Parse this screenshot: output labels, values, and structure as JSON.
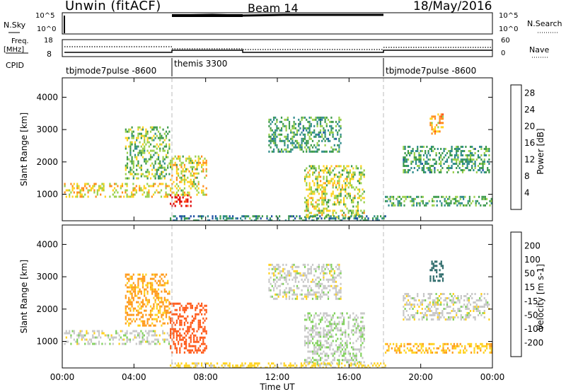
{
  "header": {
    "station": "Unwin (fitACF)",
    "beam": "Beam 14",
    "date": "18/May/2016"
  },
  "strip_labels": {
    "nsky": "N.Sky",
    "nsky_ticks": [
      "10^5",
      "10^0"
    ],
    "nsearch": "N.Search",
    "nsearch_ticks": [
      "10^5",
      "10^0"
    ],
    "freq_line1": "Freq.",
    "freq_line2": "[MHz]",
    "freq_ticks": [
      "18",
      "8"
    ],
    "nave_ticks": [
      "60",
      "0"
    ],
    "nave": "Nave",
    "cpid": "CPID"
  },
  "cpid_segments": [
    {
      "label": "tbjmode7pulse -8600",
      "start": 0,
      "end": 6
    },
    {
      "label": "themis 3300",
      "start": 6,
      "end": 18
    },
    {
      "label": "tbjmode7pulse -8600",
      "start": 18,
      "end": 24
    }
  ],
  "colors": {
    "power_scale": [
      "#1a1aff",
      "#1f4fa3",
      "#2e8b8b",
      "#3c9a4c",
      "#9ad04a",
      "#ffd21f",
      "#ff8c1a",
      "#ff4b1a",
      "#e00000"
    ],
    "velocity_scale": [
      "#1a3a9a",
      "#2e6b6b",
      "#3d9a3d",
      "#7fd15a",
      "#c8c8c8",
      "#ffd21f",
      "#ff9a1a",
      "#ff5a1a",
      "#e00000"
    ]
  },
  "chart_data": [
    {
      "type": "heatmap",
      "title": "",
      "xlabel": "Time UT",
      "ylabel": "Slant Range [km]",
      "xlim": [
        0,
        24
      ],
      "ylim": [
        180,
        4600
      ],
      "x_ticks": [
        "00:00",
        "04:00",
        "08:00",
        "12:00",
        "16:00",
        "20:00",
        "00:00"
      ],
      "y_ticks": [
        1000,
        2000,
        3000,
        4000
      ],
      "colorbar": {
        "label": "Power [dB]",
        "ticks": [
          4,
          8,
          12,
          16,
          20,
          24,
          28
        ],
        "range": [
          0,
          30
        ]
      },
      "echo_regions": [
        {
          "t_start": 0.1,
          "t_end": 6.0,
          "r_low": 900,
          "r_high": 1350,
          "level": 18
        },
        {
          "t_start": 3.5,
          "t_end": 6.0,
          "r_low": 1500,
          "r_high": 3100,
          "level": 14
        },
        {
          "t_start": 6.0,
          "t_end": 7.2,
          "r_low": 650,
          "r_high": 1000,
          "level": 27
        },
        {
          "t_start": 6.0,
          "t_end": 8.0,
          "r_low": 1000,
          "r_high": 2200,
          "level": 17
        },
        {
          "t_start": 11.5,
          "t_end": 15.5,
          "r_low": 2300,
          "r_high": 3400,
          "level": 11
        },
        {
          "t_start": 13.5,
          "t_end": 16.8,
          "r_low": 300,
          "r_high": 1900,
          "level": 16
        },
        {
          "t_start": 6.0,
          "t_end": 18.0,
          "r_low": 200,
          "r_high": 350,
          "level": 9
        },
        {
          "t_start": 18.0,
          "t_end": 24.0,
          "r_low": 680,
          "r_high": 950,
          "level": 12
        },
        {
          "t_start": 19.0,
          "t_end": 23.8,
          "r_low": 1700,
          "r_high": 2500,
          "level": 11
        },
        {
          "t_start": 20.5,
          "t_end": 21.2,
          "r_low": 2900,
          "r_high": 3500,
          "level": 20
        }
      ]
    },
    {
      "type": "heatmap",
      "title": "",
      "xlabel": "Time UT",
      "ylabel": "Slant Range [km]",
      "xlim": [
        0,
        24
      ],
      "ylim": [
        180,
        4600
      ],
      "x_ticks": [
        "00:00",
        "04:00",
        "08:00",
        "12:00",
        "16:00",
        "20:00",
        "00:00"
      ],
      "y_ticks": [
        1000,
        2000,
        3000,
        4000
      ],
      "colorbar": {
        "label": "Velocity [m s-1]",
        "ticks": [
          200,
          100,
          50,
          15,
          -15,
          -50,
          -100,
          -200
        ]
      },
      "echo_regions": [
        {
          "t_start": 0.1,
          "t_end": 6.0,
          "r_low": 900,
          "r_high": 1350,
          "velocity": 0
        },
        {
          "t_start": 3.5,
          "t_end": 6.0,
          "r_low": 1500,
          "r_high": 3100,
          "velocity": -60
        },
        {
          "t_start": 6.0,
          "t_end": 8.0,
          "r_low": 650,
          "r_high": 2200,
          "velocity": -120
        },
        {
          "t_start": 11.5,
          "t_end": 15.5,
          "r_low": 2300,
          "r_high": 3400,
          "velocity": 0
        },
        {
          "t_start": 13.5,
          "t_end": 16.8,
          "r_low": 300,
          "r_high": 1900,
          "velocity": 10
        },
        {
          "t_start": 6.0,
          "t_end": 18.0,
          "r_low": 200,
          "r_high": 350,
          "velocity": -30
        },
        {
          "t_start": 18.0,
          "t_end": 24.0,
          "r_low": 680,
          "r_high": 950,
          "velocity": -45
        },
        {
          "t_start": 19.0,
          "t_end": 23.8,
          "r_low": 1700,
          "r_high": 2500,
          "velocity": 0
        },
        {
          "t_start": 20.5,
          "t_end": 21.2,
          "r_low": 2900,
          "r_high": 3500,
          "velocity": 150
        }
      ]
    }
  ]
}
